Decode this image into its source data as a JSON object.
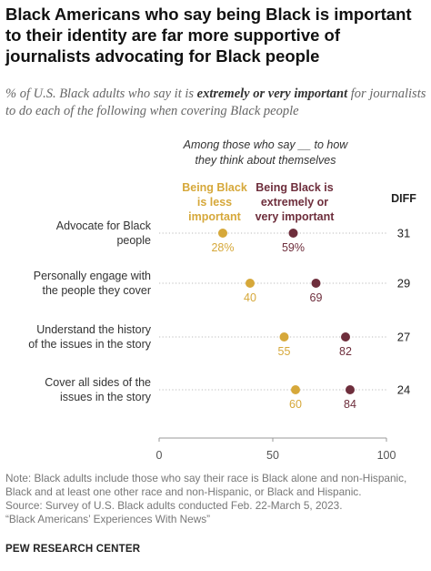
{
  "title": "Black Americans who say being Black is important to their identity are far more supportive of journalists advocating for Black people",
  "subtitle_parts": {
    "before": "% of U.S. Black adults who say it is ",
    "emphasis": "extremely or very important",
    "after": " for journalists to do each of the following when covering Black people"
  },
  "chart_data": {
    "type": "scatter",
    "header_lines": [
      "Among those who say __ to how",
      "they think about themselves"
    ],
    "diff_label": "DIFF",
    "xlim": [
      0,
      100
    ],
    "x_ticks": [
      "0",
      "50",
      "100"
    ],
    "grid": false,
    "colors": {
      "less": "#d6a83a",
      "more": "#6e2e3c",
      "dots": "#bbbbbb"
    },
    "series": [
      {
        "key": "less",
        "name_lines": [
          "Being Black",
          "is less",
          "important"
        ],
        "color": "#d6a83a"
      },
      {
        "key": "more",
        "name_lines": [
          "Being Black is",
          "extremely or",
          "very important"
        ],
        "color": "#6e2e3c"
      }
    ],
    "rows": [
      {
        "label_lines": [
          "Advocate for Black",
          "people"
        ],
        "less": 28,
        "more": 59,
        "less_label": "28%",
        "more_label": "59%",
        "diff": "31"
      },
      {
        "label_lines": [
          "Personally engage with",
          "the people they cover"
        ],
        "less": 40,
        "more": 69,
        "less_label": "40",
        "more_label": "69",
        "diff": "29"
      },
      {
        "label_lines": [
          "Understand the history",
          "of the issues in the story"
        ],
        "less": 55,
        "more": 82,
        "less_label": "55",
        "more_label": "82",
        "diff": "27"
      },
      {
        "label_lines": [
          "Cover all sides of the",
          "issues in the story"
        ],
        "less": 60,
        "more": 84,
        "less_label": "60",
        "more_label": "84",
        "diff": "24"
      }
    ]
  },
  "notes": [
    "Note: Black adults include those who say their race is Black alone and non-Hispanic,",
    "Black and at least one other race and non-Hispanic, or Black and Hispanic.",
    "Source: Survey of U.S. Black adults conducted Feb. 22-March 5, 2023.",
    "“Black Americans’ Experiences With News”"
  ],
  "brand": "PEW RESEARCH CENTER"
}
